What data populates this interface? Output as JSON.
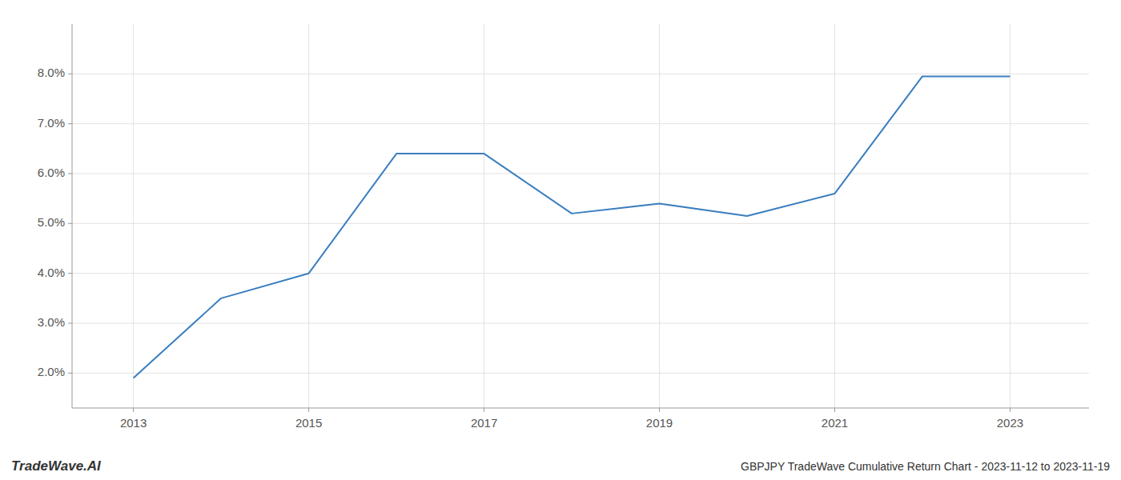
{
  "chart_data": {
    "type": "line",
    "title": "GBPJPY TradeWave Cumulative Return Chart - 2023-11-12 to 2023-11-19",
    "annotations": [
      "TradeWave.AI"
    ],
    "x": [
      2013,
      2014,
      2015,
      2016,
      2017,
      2018,
      2019,
      2020,
      2021,
      2022,
      2023
    ],
    "values": [
      0.019,
      0.035,
      0.04,
      0.064,
      0.064,
      0.052,
      0.054,
      0.0515,
      0.056,
      0.0795,
      0.0795
    ],
    "color": "#3a7ebf",
    "xlim": [
      2012.3,
      2023.9
    ],
    "ylim": [
      0.013,
      0.09
    ],
    "xticks": [
      2013,
      2015,
      2017,
      2019,
      2021,
      2023
    ],
    "yticks": [
      {
        "value": 0.02,
        "label": "2.0%"
      },
      {
        "value": 0.03,
        "label": "3.0%"
      },
      {
        "value": 0.04,
        "label": "4.0%"
      },
      {
        "value": 0.05,
        "label": "5.0%"
      },
      {
        "value": 0.06,
        "label": "6.0%"
      },
      {
        "value": 0.07,
        "label": "7.0%"
      },
      {
        "value": 0.08,
        "label": "8.0%"
      }
    ],
    "grid": true
  }
}
